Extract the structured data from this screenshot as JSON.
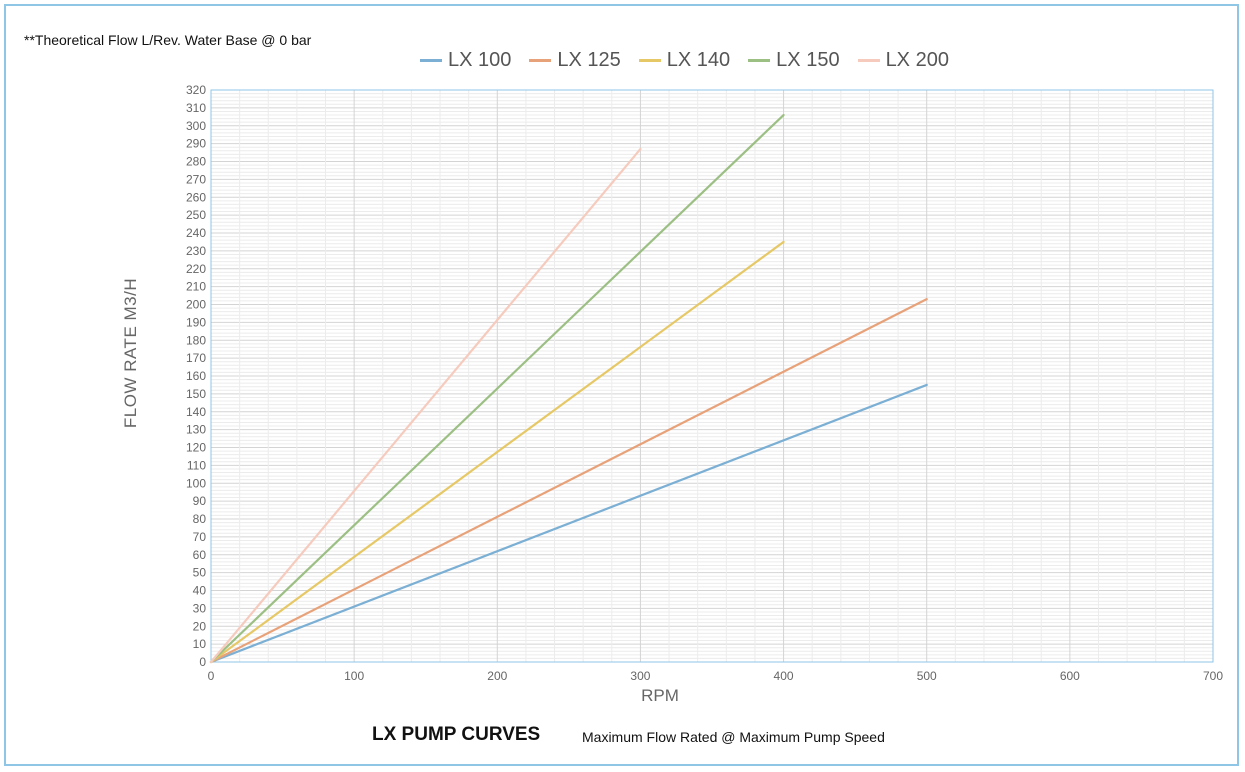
{
  "note": "**Theoretical Flow L/Rev. Water Base @ 0 bar",
  "footer": {
    "title": "LX PUMP CURVES",
    "subtitle": "Maximum Flow Rated @ Maximum Pump Speed"
  },
  "chart_data": {
    "type": "line",
    "title": "LX PUMP CURVES",
    "subtitle": "Maximum Flow Rated @ Maximum Pump Speed",
    "xlabel": "RPM",
    "ylabel": "FLOW RATE  M3/H",
    "xlim": [
      0,
      700
    ],
    "ylim": [
      0,
      320
    ],
    "x_ticks": [
      0,
      100,
      200,
      300,
      400,
      500,
      600,
      700
    ],
    "y_ticks": [
      0,
      10,
      20,
      30,
      40,
      50,
      60,
      70,
      80,
      90,
      100,
      110,
      120,
      130,
      140,
      150,
      160,
      170,
      180,
      190,
      200,
      210,
      220,
      230,
      240,
      250,
      260,
      270,
      280,
      290,
      300,
      310,
      320
    ],
    "grid": true,
    "legend_position": "top",
    "series": [
      {
        "name": "LX 100",
        "color": "#7bafd4",
        "x": [
          0,
          500
        ],
        "y": [
          0,
          155
        ]
      },
      {
        "name": "LX 125",
        "color": "#e8a27a",
        "x": [
          0,
          500
        ],
        "y": [
          0,
          203
        ]
      },
      {
        "name": "LX 140",
        "color": "#e6c866",
        "x": [
          0,
          400
        ],
        "y": [
          0,
          235
        ]
      },
      {
        "name": "LX 150",
        "color": "#9cbf84",
        "x": [
          0,
          400
        ],
        "y": [
          0,
          306
        ]
      },
      {
        "name": "LX 200",
        "color": "#f6cbbd",
        "x": [
          0,
          300
        ],
        "y": [
          0,
          287
        ]
      }
    ]
  }
}
